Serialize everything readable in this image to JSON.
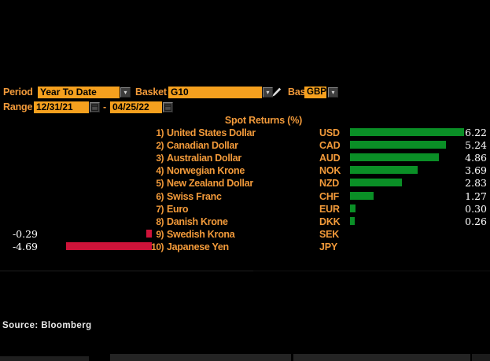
{
  "controls": {
    "period_label": "Period",
    "period_value": "Year To Date",
    "basket_label": "Basket",
    "basket_value": "G10",
    "base_label": "Base",
    "base_value": "GBP",
    "range_label": "Range",
    "range_start": "12/31/21",
    "range_separator": "-",
    "range_end": "04/25/22"
  },
  "icons": {
    "dropdown_arrow": "▾",
    "pencil": "pencil-icon",
    "calendar": "calendar-icon"
  },
  "colors": {
    "amber_field": "#f5a01e",
    "orange_text": "#f29a3a",
    "bar_green": "#0a8f26",
    "bar_red": "#ce1339",
    "value_text": "#ffffff"
  },
  "chart_data": {
    "type": "bar",
    "orientation": "horizontal",
    "title": "Spot Returns (%)",
    "xlim": [
      -4.69,
      6.22
    ],
    "grid": false,
    "legend": "none",
    "value_precision": 2,
    "rows": [
      {
        "no": "1)",
        "name": "United States Dollar",
        "ticker": "USD",
        "value": 6.22,
        "value_label": "6.22"
      },
      {
        "no": "2)",
        "name": "Canadian Dollar",
        "ticker": "CAD",
        "value": 5.24,
        "value_label": "5.24"
      },
      {
        "no": "3)",
        "name": "Australian Dollar",
        "ticker": "AUD",
        "value": 4.86,
        "value_label": "4.86"
      },
      {
        "no": "4)",
        "name": "Norwegian Krone",
        "ticker": "NOK",
        "value": 3.69,
        "value_label": "3.69"
      },
      {
        "no": "5)",
        "name": "New Zealand Dollar",
        "ticker": "NZD",
        "value": 2.83,
        "value_label": "2.83"
      },
      {
        "no": "6)",
        "name": "Swiss Franc",
        "ticker": "CHF",
        "value": 1.27,
        "value_label": "1.27"
      },
      {
        "no": "7)",
        "name": "Euro",
        "ticker": "EUR",
        "value": 0.3,
        "value_label": "0.30"
      },
      {
        "no": "8)",
        "name": "Danish Krone",
        "ticker": "DKK",
        "value": 0.26,
        "value_label": "0.26"
      },
      {
        "no": "9)",
        "name": "Swedish Krona",
        "ticker": "SEK",
        "value": -0.29,
        "value_label": "-0.29"
      },
      {
        "no": "10)",
        "name": "Japanese Yen",
        "ticker": "JPY",
        "value": -4.69,
        "value_label": "-4.69"
      }
    ]
  },
  "source": "Source: Bloomberg"
}
